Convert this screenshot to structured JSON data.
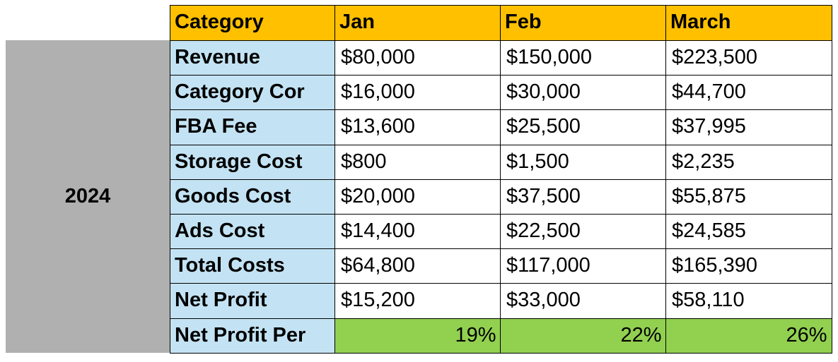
{
  "group": "2024",
  "table": {
    "header": [
      "Category",
      "Jan",
      "Feb",
      "March"
    ],
    "rows": [
      [
        "Revenue",
        "$80,000",
        "$150,000",
        "$223,500"
      ],
      [
        "Category Cor",
        "$16,000",
        "$30,000",
        "$44,700"
      ],
      [
        "FBA Fee",
        "$13,600",
        "$25,500",
        "$37,995"
      ],
      [
        "Storage Cost",
        "$800",
        "$1,500",
        "$2,235"
      ],
      [
        "Goods Cost",
        "$20,000",
        "$37,500",
        "$55,875"
      ],
      [
        "Ads Cost",
        "$14,400",
        "$22,500",
        "$24,585"
      ],
      [
        "Total Costs",
        "$64,800",
        "$117,000",
        "$165,390"
      ],
      [
        "Net Profit",
        "$15,200",
        "$33,000",
        "$58,110"
      ],
      [
        "Net Profit Per",
        "19%",
        "22%",
        "26%"
      ]
    ]
  }
}
